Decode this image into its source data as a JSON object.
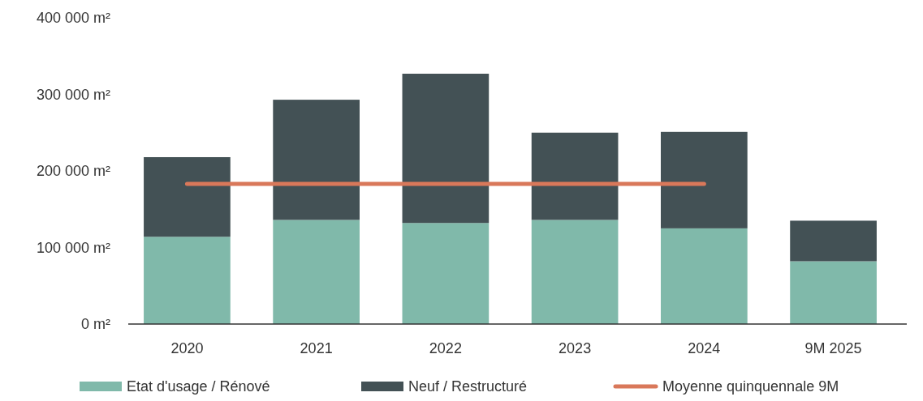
{
  "chart_data": {
    "type": "bar",
    "stacked": true,
    "categories": [
      "2020",
      "2021",
      "2022",
      "2023",
      "2024",
      "9M 2025"
    ],
    "series": [
      {
        "name": "Etat d'usage / Rénové",
        "color": "#80b9aa",
        "values": [
          114000,
          136000,
          132000,
          136000,
          125000,
          82000
        ]
      },
      {
        "name": "Neuf / Restructuré",
        "color": "#435155",
        "values": [
          104000,
          157000,
          195000,
          114000,
          126000,
          53000
        ]
      },
      {
        "name": "Moyenne quinquennale 9M",
        "type": "line",
        "color": "#d9785a",
        "values": [
          183000,
          183000,
          183000,
          183000,
          183000,
          null
        ]
      }
    ],
    "ylim": [
      0,
      400000
    ],
    "yticks": [
      {
        "value": 0,
        "label": "0 m²"
      },
      {
        "value": 100000,
        "label": "100 000 m²"
      },
      {
        "value": 200000,
        "label": "200 000 m²"
      },
      {
        "value": 300000,
        "label": "300 000 m²"
      },
      {
        "value": 400000,
        "label": "400 000 m²"
      }
    ],
    "grid": false,
    "legend": "bottom"
  }
}
